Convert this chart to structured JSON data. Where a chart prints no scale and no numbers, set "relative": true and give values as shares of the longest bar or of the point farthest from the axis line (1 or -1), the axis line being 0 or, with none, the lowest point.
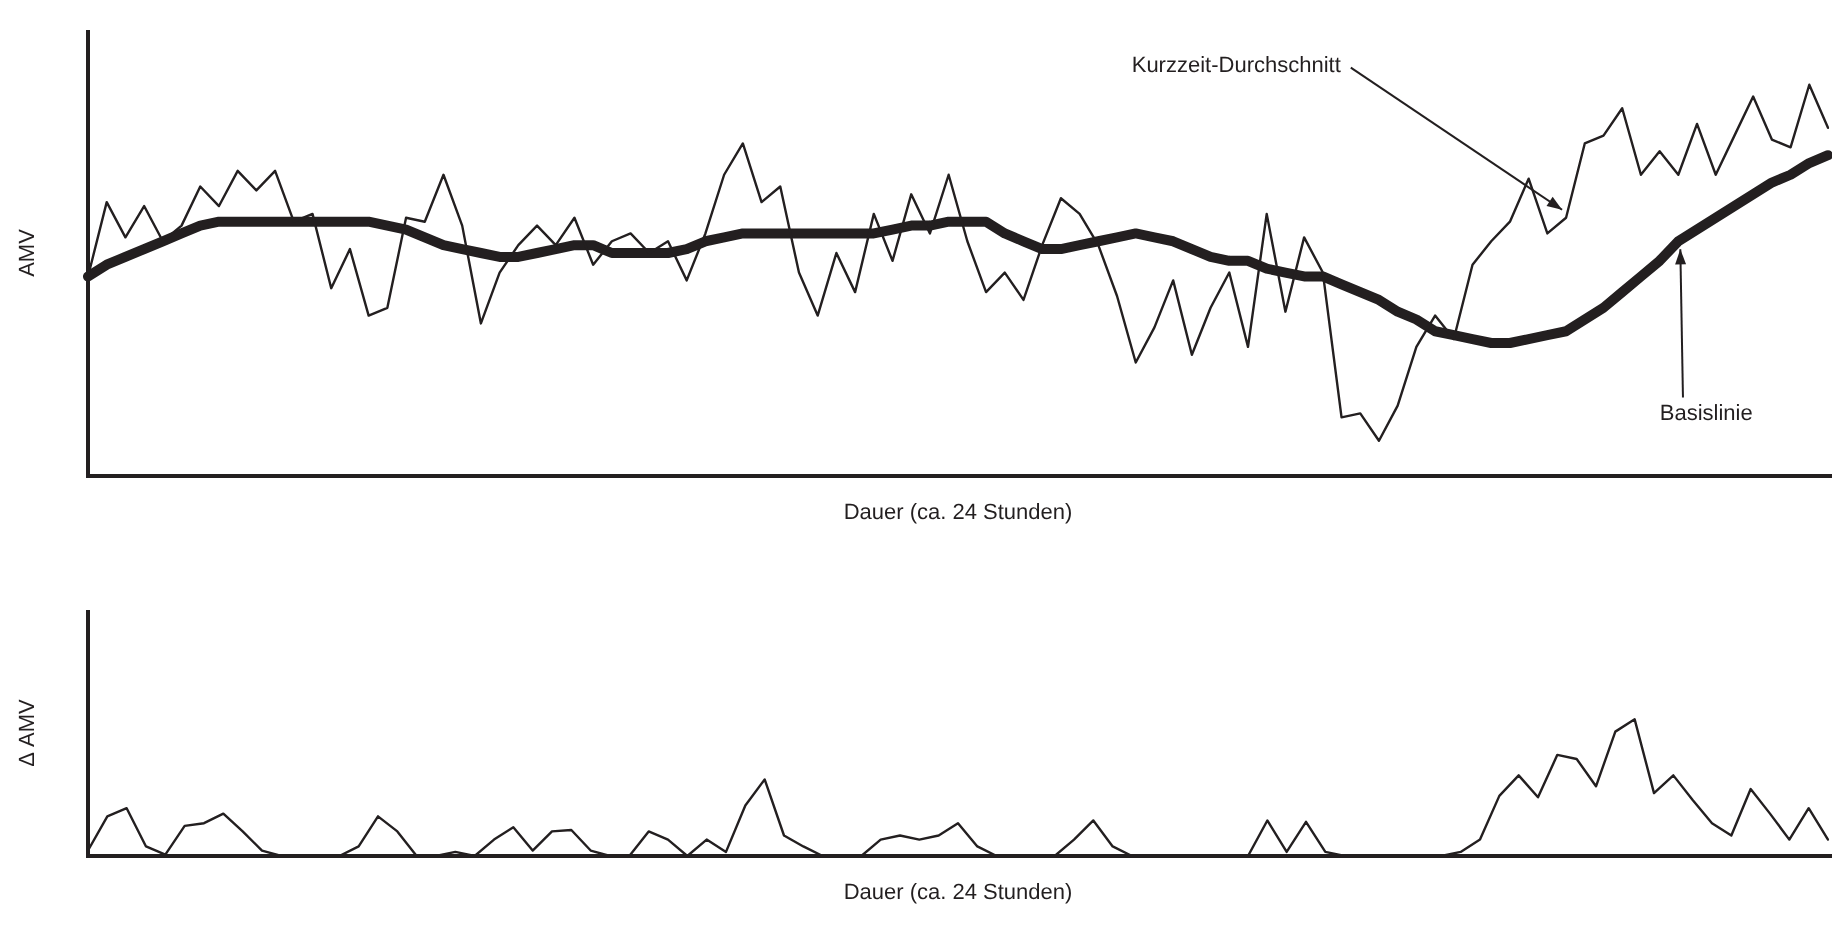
{
  "chart_data": [
    {
      "type": "line",
      "relative": true,
      "xlabel": "Dauer (ca. 24 Stunden)",
      "ylabel": "AMV",
      "categories": [
        null,
        null,
        null,
        null,
        null,
        null,
        null,
        null,
        null,
        null,
        null,
        null,
        null,
        null,
        null,
        null,
        null,
        null,
        null,
        null,
        null,
        null,
        null,
        null,
        null,
        null,
        null,
        null,
        null,
        null,
        null,
        null,
        null,
        null,
        null,
        null,
        null,
        null,
        null,
        null,
        null,
        null,
        null,
        null,
        null,
        null,
        null,
        null,
        null,
        null,
        null,
        null,
        null,
        null,
        null,
        null,
        null,
        null,
        null,
        null,
        null,
        null,
        null,
        null,
        null,
        null,
        null,
        null,
        null,
        null,
        null,
        null,
        null,
        null,
        null,
        null,
        null,
        null,
        null,
        null,
        null,
        null,
        null,
        null,
        null,
        null,
        null,
        null,
        null,
        null,
        null,
        null,
        null,
        null
      ],
      "series": [
        {
          "name": "Kurzzeit-Durchschnitt",
          "color": "#231f20",
          "values": [
            0.51,
            0.7,
            0.61,
            0.69,
            0.6,
            0.64,
            0.74,
            0.69,
            0.78,
            0.73,
            0.78,
            0.65,
            0.67,
            0.48,
            0.58,
            0.41,
            0.43,
            0.66,
            0.65,
            0.77,
            0.64,
            0.39,
            0.52,
            0.59,
            0.64,
            0.59,
            0.66,
            0.54,
            0.6,
            0.62,
            0.57,
            0.6,
            0.5,
            0.62,
            0.77,
            0.85,
            0.7,
            0.74,
            0.52,
            0.41,
            0.57,
            0.47,
            0.67,
            0.55,
            0.72,
            0.62,
            0.77,
            0.6,
            0.47,
            0.52,
            0.45,
            0.59,
            0.71,
            0.67,
            0.59,
            0.46,
            0.29,
            0.38,
            0.5,
            0.31,
            0.43,
            0.52,
            0.33,
            0.67,
            0.42,
            0.61,
            0.52,
            0.15,
            0.16,
            0.09,
            0.18,
            0.33,
            0.41,
            0.35,
            0.54,
            0.6,
            0.65,
            0.76,
            0.62,
            0.66,
            0.85,
            0.87,
            0.94,
            0.77,
            0.83,
            0.77,
            0.9,
            0.77,
            0.87,
            0.97,
            0.86,
            0.84,
            1,
            0.89
          ]
        },
        {
          "name": "Basislinie",
          "color": "#231f20",
          "values": [
            0.51,
            0.54,
            0.56,
            0.58,
            0.6,
            0.62,
            0.64,
            0.65,
            0.65,
            0.65,
            0.65,
            0.65,
            0.65,
            0.65,
            0.65,
            0.65,
            0.64,
            0.63,
            0.61,
            0.59,
            0.58,
            0.57,
            0.56,
            0.56,
            0.57,
            0.58,
            0.59,
            0.59,
            0.57,
            0.57,
            0.57,
            0.57,
            0.58,
            0.6,
            0.61,
            0.62,
            0.62,
            0.62,
            0.62,
            0.62,
            0.62,
            0.62,
            0.62,
            0.63,
            0.64,
            0.64,
            0.65,
            0.65,
            0.65,
            0.62,
            0.6,
            0.58,
            0.58,
            0.59,
            0.6,
            0.61,
            0.62,
            0.61,
            0.6,
            0.58,
            0.56,
            0.55,
            0.55,
            0.53,
            0.52,
            0.51,
            0.51,
            0.49,
            0.47,
            0.45,
            0.42,
            0.4,
            0.37,
            0.36,
            0.35,
            0.34,
            0.34,
            0.35,
            0.36,
            0.37,
            0.4,
            0.43,
            0.47,
            0.51,
            0.55,
            0.6,
            0.63,
            0.66,
            0.69,
            0.72,
            0.75,
            0.77,
            0.8,
            0.82
          ]
        }
      ]
    },
    {
      "type": "line",
      "relative": true,
      "xlabel": "Dauer (ca. 24 Stunden)",
      "ylabel": "Δ AMV",
      "categories": [
        null,
        null,
        null,
        null,
        null,
        null,
        null,
        null,
        null,
        null,
        null,
        null,
        null,
        null,
        null,
        null,
        null,
        null,
        null,
        null,
        null,
        null,
        null,
        null,
        null,
        null,
        null,
        null,
        null,
        null,
        null,
        null,
        null,
        null,
        null,
        null,
        null,
        null,
        null,
        null,
        null,
        null,
        null,
        null,
        null,
        null,
        null,
        null,
        null,
        null,
        null,
        null,
        null,
        null,
        null,
        null,
        null,
        null,
        null,
        null,
        null,
        null,
        null,
        null,
        null,
        null,
        null,
        null,
        null,
        null,
        null,
        null,
        null,
        null,
        null,
        null,
        null,
        null,
        null,
        null,
        null,
        null,
        null,
        null,
        null,
        null,
        null,
        null,
        null,
        null,
        null
      ],
      "series": [
        {
          "color": "#231f20",
          "values": [
            0.04,
            0.29,
            0.35,
            0.07,
            0.01,
            0.22,
            0.24,
            0.31,
            0.18,
            0.04,
            0,
            0,
            0,
            0,
            0.07,
            0.29,
            0.18,
            0,
            0,
            0.03,
            0,
            0.12,
            0.21,
            0.04,
            0.18,
            0.19,
            0.04,
            0,
            0,
            0.18,
            0.12,
            0,
            0.12,
            0.03,
            0.37,
            0.56,
            0.15,
            0.07,
            0,
            0,
            0,
            0.12,
            0.15,
            0.12,
            0.15,
            0.24,
            0.07,
            0,
            0,
            0,
            0,
            0.12,
            0.26,
            0.07,
            0,
            0,
            0,
            0,
            0,
            0,
            0,
            0.26,
            0.03,
            0.25,
            0.03,
            0,
            0,
            0,
            0,
            0,
            0,
            0.03,
            0.12,
            0.44,
            0.59,
            0.43,
            0.74,
            0.71,
            0.51,
            0.91,
            1,
            0.46,
            0.59,
            0.41,
            0.24,
            0.15,
            0.49,
            0.31,
            0.12,
            0.35,
            0.12
          ]
        }
      ]
    }
  ]
}
